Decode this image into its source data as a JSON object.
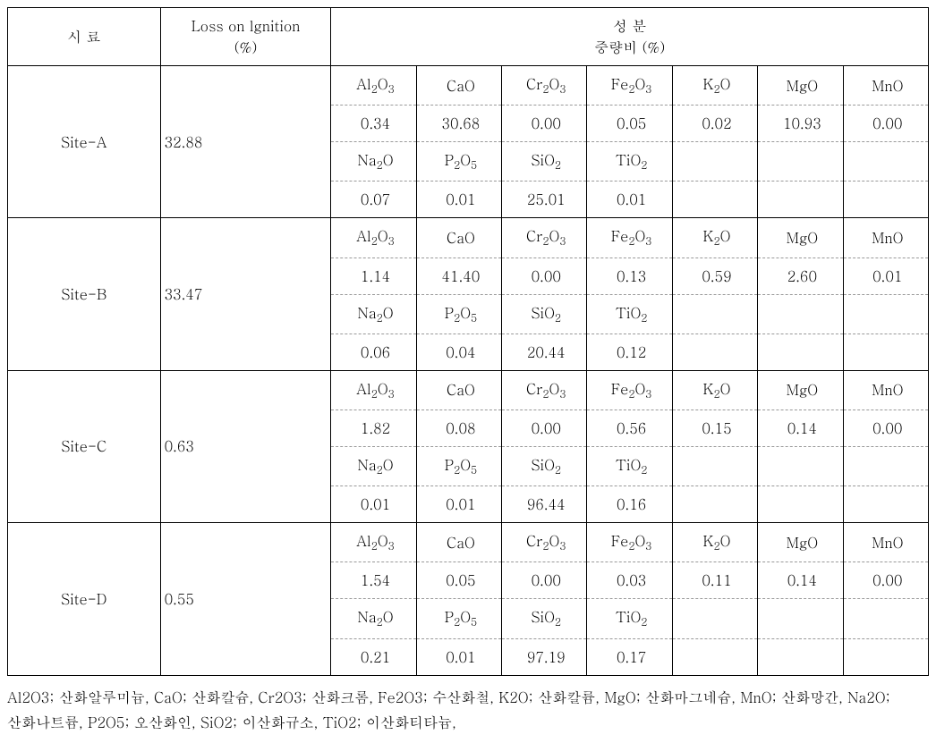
{
  "headers": {
    "sample": "시 료",
    "loi_line1": "Loss on lgnition",
    "loi_line2": "(%)",
    "comp_line1": "성   분",
    "comp_line2": "중량비 (%)"
  },
  "compounds_row1": {
    "c1": "Al₂O₃",
    "c2": "CaO",
    "c3": "Cr₂O₃",
    "c4": "Fe₂O₃",
    "c5": "K₂O",
    "c6": "MgO",
    "c7": "MnO"
  },
  "compounds_row2": {
    "c1": "Na₂O",
    "c2": "P₂O₅",
    "c3": "SiO₂",
    "c4": "TiO₂"
  },
  "sites": {
    "siteA": {
      "name": "Site-A",
      "loi": "32.88",
      "row1": {
        "v1": "0.34",
        "v2": "30.68",
        "v3": "0.00",
        "v4": "0.05",
        "v5": "0.02",
        "v6": "10.93",
        "v7": "0.00"
      },
      "row2": {
        "v1": "0.07",
        "v2": "0.01",
        "v3": "25.01",
        "v4": "0.01"
      }
    },
    "siteB": {
      "name": "Site-B",
      "loi": "33.47",
      "row1": {
        "v1": "1.14",
        "v2": "41.40",
        "v3": "0.00",
        "v4": "0.13",
        "v5": "0.59",
        "v6": "2.60",
        "v7": "0.01"
      },
      "row2": {
        "v1": "0.06",
        "v2": "0.04",
        "v3": "20.44",
        "v4": "0.12"
      }
    },
    "siteC": {
      "name": "Site-C",
      "loi": "0.63",
      "row1": {
        "v1": "1.82",
        "v2": "0.08",
        "v3": "0.00",
        "v4": "0.56",
        "v5": "0.15",
        "v6": "0.14",
        "v7": "0.00"
      },
      "row2": {
        "v1": "0.01",
        "v2": "0.01",
        "v3": "96.44",
        "v4": "0.16"
      }
    },
    "siteD": {
      "name": "Site-D",
      "loi": "0.55",
      "row1": {
        "v1": "1.54",
        "v2": "0.05",
        "v3": "0.00",
        "v4": "0.03",
        "v5": "0.11",
        "v6": "0.14",
        "v7": "0.00"
      },
      "row2": {
        "v1": "0.21",
        "v2": "0.01",
        "v3": "97.19",
        "v4": "0.17"
      }
    }
  },
  "footnote": "Al2O3; 산화알루미늄, CaO; 산화칼슘, Cr2O3; 산화크롬, Fe2O3; 수산화철, K2O; 산화칼륨, MgO; 산화마그네슘, MnO; 산화망간, Na2O; 산화나트륨, P2O5; 오산화인, SiO2; 이산화규소, TiO2; 이산화티타늄,"
}
